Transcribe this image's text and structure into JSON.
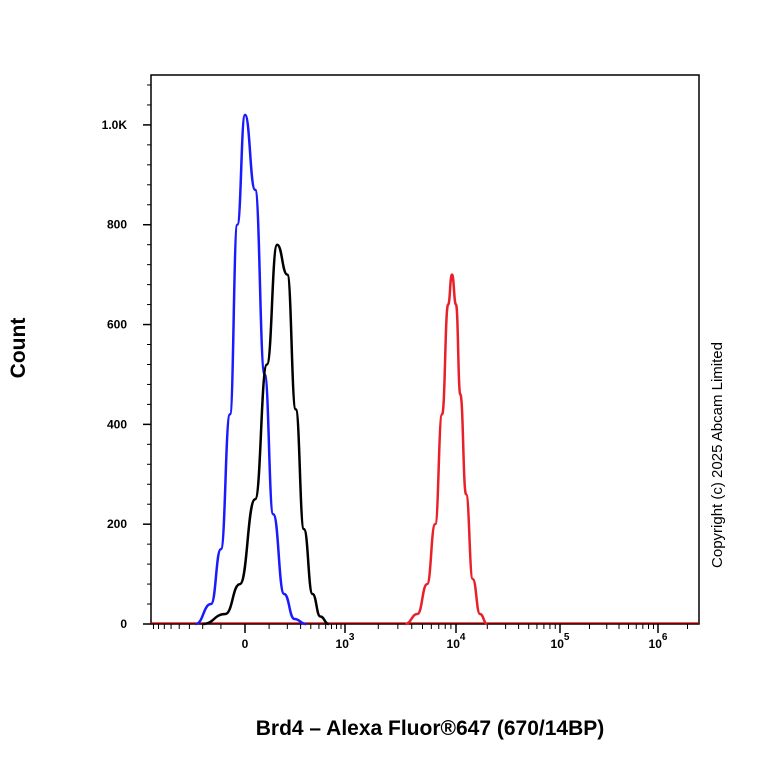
{
  "chart_data": {
    "type": "line",
    "title": "",
    "xlabel": "Brd4 – Alexa Fluor®647 (670/14BP)",
    "ylabel": "Count",
    "copyright": "Copyright (c) 2025 Abcam Limited",
    "x_scale": "biexponential",
    "ylim": [
      0,
      1100
    ],
    "x_ticks": [
      {
        "base": "0",
        "exp": ""
      },
      {
        "base": "10",
        "exp": "3"
      },
      {
        "base": "10",
        "exp": "4"
      },
      {
        "base": "10",
        "exp": "5"
      },
      {
        "base": "10",
        "exp": "6"
      }
    ],
    "y_ticks": [
      "0",
      "200",
      "400",
      "600",
      "800",
      "1.0K"
    ],
    "grid": false,
    "legend": "none",
    "series": [
      {
        "color": "#1a1aff",
        "x": [
          -250,
          -150,
          -100,
          -60,
          -30,
          0,
          40,
          80,
          120,
          180,
          250,
          350
        ],
        "y": [
          0,
          40,
          150,
          420,
          800,
          1020,
          870,
          500,
          220,
          60,
          10,
          0
        ]
      },
      {
        "color": "#000000",
        "x": [
          -200,
          -80,
          -20,
          40,
          90,
          140,
          200,
          260,
          330,
          420,
          520,
          650
        ],
        "y": [
          0,
          20,
          80,
          250,
          520,
          760,
          700,
          430,
          190,
          60,
          15,
          0
        ]
      },
      {
        "color": "#e8202a",
        "x": [
          3500,
          4500,
          5500,
          6500,
          7500,
          8500,
          9200,
          10000,
          11000,
          12500,
          14500,
          17000,
          20000
        ],
        "y": [
          0,
          20,
          80,
          200,
          420,
          640,
          700,
          640,
          460,
          260,
          90,
          20,
          0
        ]
      }
    ]
  }
}
